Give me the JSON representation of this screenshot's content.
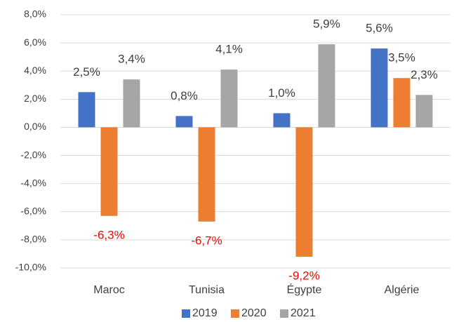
{
  "chart_data": {
    "type": "bar",
    "categories": [
      "Maroc",
      "Tunisia",
      "Égypte",
      "Algérie"
    ],
    "series": [
      {
        "name": "2019",
        "color": "#4472c4",
        "values": [
          2.5,
          0.8,
          1.0,
          5.6
        ],
        "value_labels": [
          "2,5%",
          "0,8%",
          "1,0%",
          "5,6%"
        ]
      },
      {
        "name": "2020",
        "color": "#ed7d31",
        "values": [
          -6.3,
          -6.7,
          -9.2,
          3.5
        ],
        "value_labels": [
          "-6,3%",
          "-6,7%",
          "-9,2%",
          "3,5%"
        ]
      },
      {
        "name": "2021",
        "color": "#a5a5a5",
        "values": [
          3.4,
          4.1,
          5.9,
          2.3
        ],
        "value_labels": [
          "3,4%",
          "4,1%",
          "5,9%",
          "2,3%"
        ]
      }
    ],
    "ylim": [
      -10,
      8
    ],
    "yticks": [
      {
        "value": -10,
        "label": "-10,0%"
      },
      {
        "value": -8,
        "label": "-8,0%"
      },
      {
        "value": -6,
        "label": "-6,0%"
      },
      {
        "value": -4,
        "label": "-4,0%"
      },
      {
        "value": -2,
        "label": "-2,0%"
      },
      {
        "value": 0,
        "label": "0,0%"
      },
      {
        "value": 2,
        "label": "2,0%"
      },
      {
        "value": 4,
        "label": "4,0%"
      },
      {
        "value": 6,
        "label": "6,0%"
      },
      {
        "value": 8,
        "label": "8,0%"
      }
    ],
    "grid": true,
    "legend": "bottom"
  }
}
